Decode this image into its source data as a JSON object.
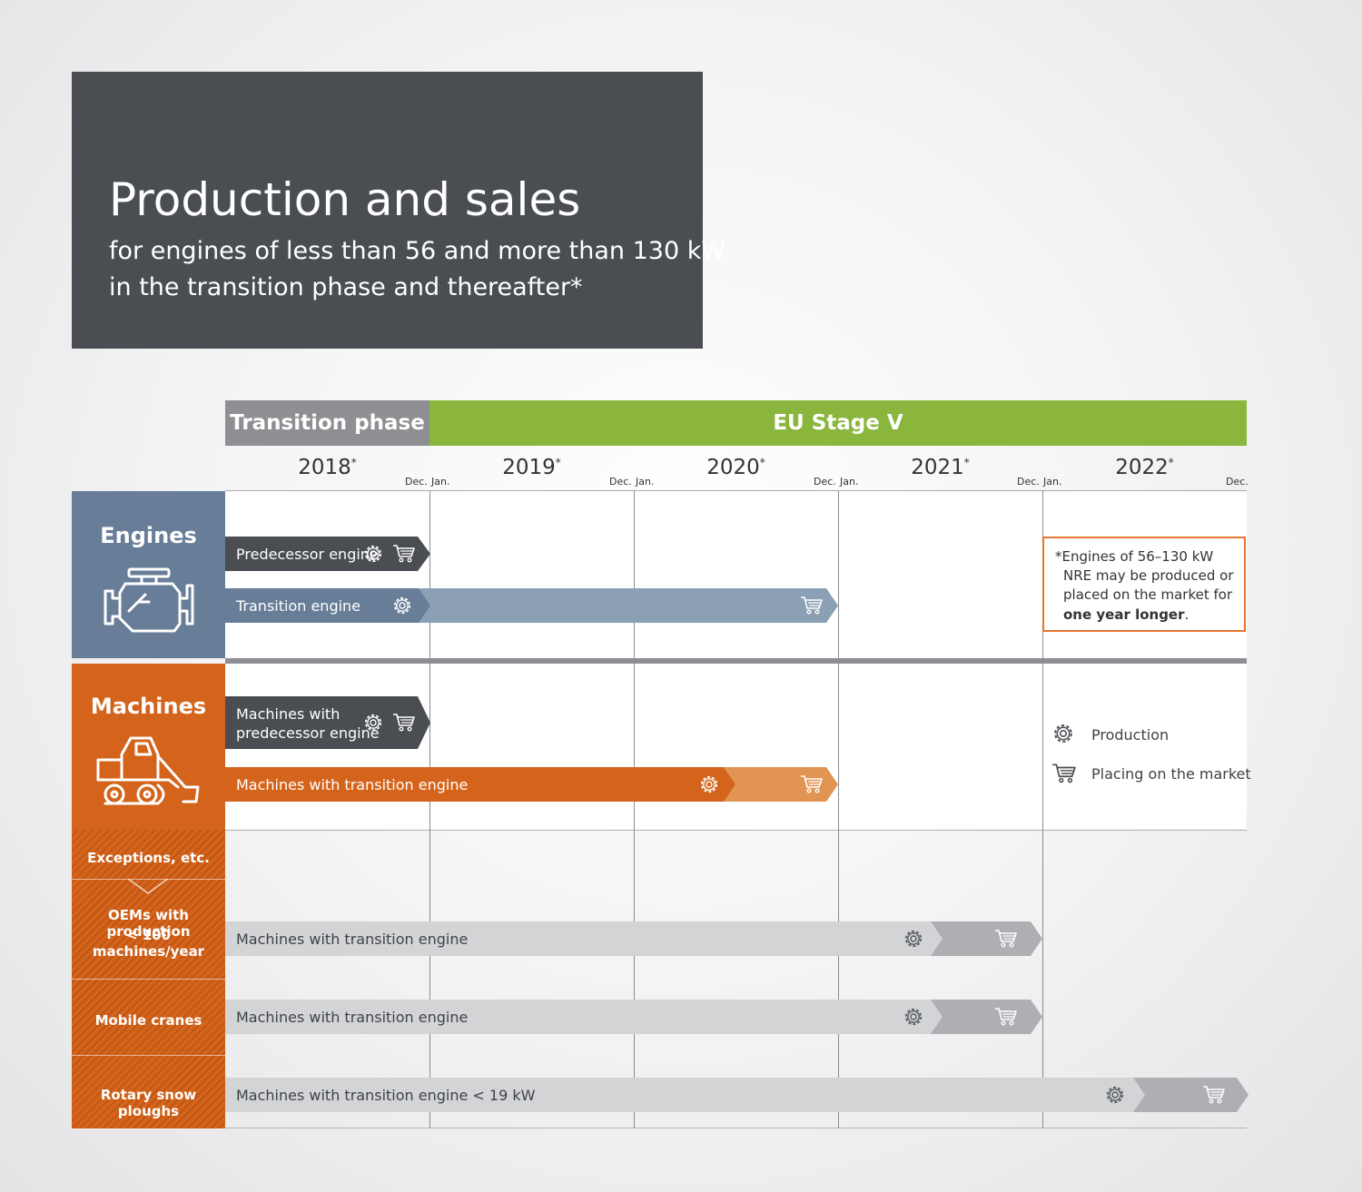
{
  "header": {
    "title": "Production and sales",
    "subtitle_line1": "for engines of less than 56 and more than 130 kW",
    "subtitle_line2": "in the transition phase and thereafter*"
  },
  "phases": {
    "transition": "Transition phase",
    "stage_v": "EU Stage V"
  },
  "timeline": {
    "years": [
      "2018",
      "2019",
      "2020",
      "2021",
      "2022"
    ],
    "year_marker": "*",
    "month_start": "Jan.",
    "month_end": "Dec."
  },
  "sections": {
    "engines": "Engines",
    "machines": "Machines",
    "exceptions": "Exceptions, etc.",
    "oem_line1": "OEMs with production",
    "oem_line2": "< 100 machines/year",
    "cranes": "Mobile cranes",
    "ploughs": "Rotary snow ploughs"
  },
  "bars": {
    "predecessor_engine": "Predecessor engine",
    "transition_engine": "Transition engine",
    "machines_predecessor_line1": "Machines with",
    "machines_predecessor_line2": "predecessor engine",
    "machines_transition": "Machines with transition engine",
    "oem_bar": "Machines with transition engine",
    "cranes_bar": "Machines with transition engine",
    "ploughs_bar": "Machines with transition engine < 19 kW"
  },
  "note": {
    "line1": "*Engines of 56–130 kW",
    "line2": "NRE may be produced or",
    "line3": "placed on the market for",
    "bold": "one year longer",
    "end": "."
  },
  "legend": {
    "production": "Production",
    "market": "Placing on the market"
  },
  "colors": {
    "dark": "#4a4d52",
    "blue": "#687d98",
    "light_blue": "#8ba0b4",
    "orange": "#d4641b",
    "light_orange": "#e29552",
    "green": "#8ab63d",
    "gray_phase": "#8e8f92",
    "light_gray": "#d3d4d6",
    "mid_gray": "#aeafb2",
    "note_border": "#e4762f"
  },
  "icons": [
    "gear-icon",
    "cart-icon",
    "engine-icon",
    "skid-steer-icon"
  ]
}
